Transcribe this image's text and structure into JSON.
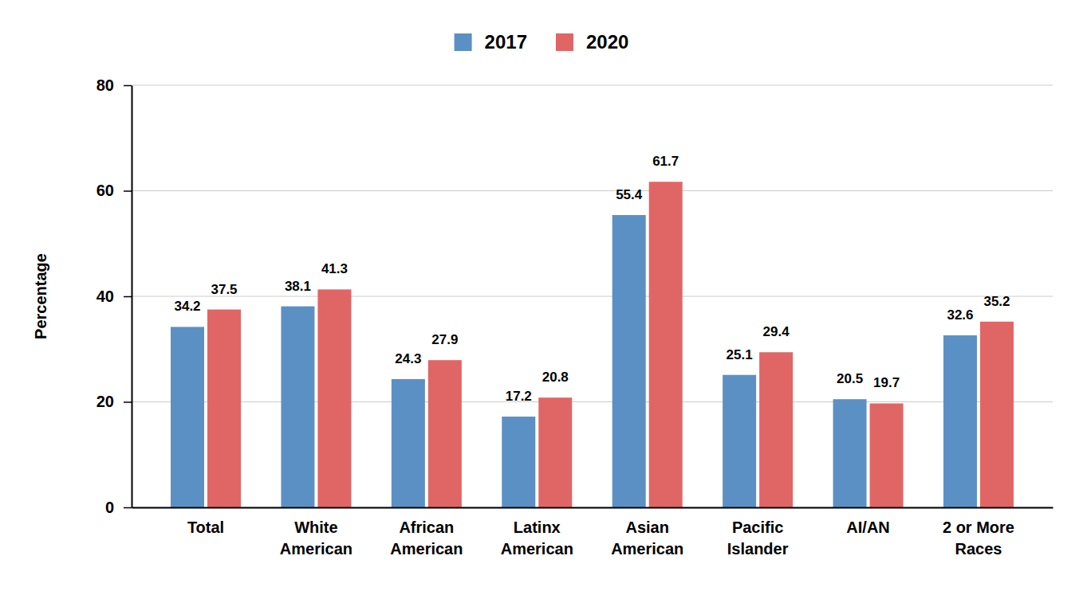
{
  "chart_data": {
    "type": "bar",
    "y_label": "Percentage",
    "categories": [
      "Total",
      "White American",
      "African American",
      "Latinx American",
      "Asian American",
      "Pacific Islander",
      "AI/AN",
      "2 or More Races"
    ],
    "series": [
      {
        "name": "2017",
        "color": "#5b90c4",
        "values": [
          34.2,
          38.1,
          24.3,
          17.2,
          55.4,
          25.1,
          20.5,
          32.6
        ]
      },
      {
        "name": "2020",
        "color": "#e06666",
        "values": [
          37.5,
          41.3,
          27.9,
          20.8,
          61.7,
          29.4,
          19.7,
          35.2
        ]
      }
    ],
    "ylim": [
      0,
      80
    ],
    "yticks": [
      0,
      20,
      40,
      60,
      80
    ],
    "grid": true,
    "legend": "top",
    "data_labels": true
  }
}
